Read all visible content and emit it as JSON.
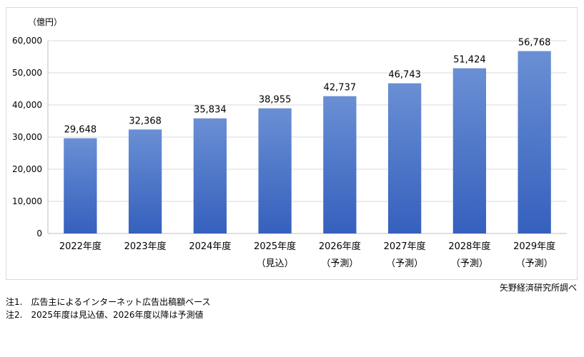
{
  "chart_data": {
    "type": "bar",
    "unit_label": "（億円）",
    "categories": [
      "2022年度",
      "2023年度",
      "2024年度",
      "2025年度",
      "2026年度",
      "2027年度",
      "2028年度",
      "2029年度"
    ],
    "category_sublabels": [
      "",
      "",
      "",
      "（見込）",
      "（予測）",
      "（予測）",
      "（予測）",
      "（予測）"
    ],
    "values": [
      29648,
      32368,
      35834,
      38955,
      42737,
      46743,
      51424,
      56768
    ],
    "data_labels": [
      "29,648",
      "32,368",
      "35,834",
      "38,955",
      "42,737",
      "46,743",
      "51,424",
      "56,768"
    ],
    "ylim": [
      0,
      60000
    ],
    "y_ticks": [
      0,
      10000,
      20000,
      30000,
      40000,
      50000,
      60000
    ],
    "y_tick_labels": [
      "0",
      "10,000",
      "20,000",
      "30,000",
      "40,000",
      "50,000",
      "60,000"
    ],
    "grid": true,
    "legend": "none",
    "bar_color_top": "#6a8fd4",
    "bar_color_bottom": "#3560bd"
  },
  "source": "矢野経済研究所調べ",
  "notes": [
    "注1.　広告主によるインターネット広告出稿額ベース",
    "注2.　2025年度は見込値、2026年度以降は予測値"
  ]
}
